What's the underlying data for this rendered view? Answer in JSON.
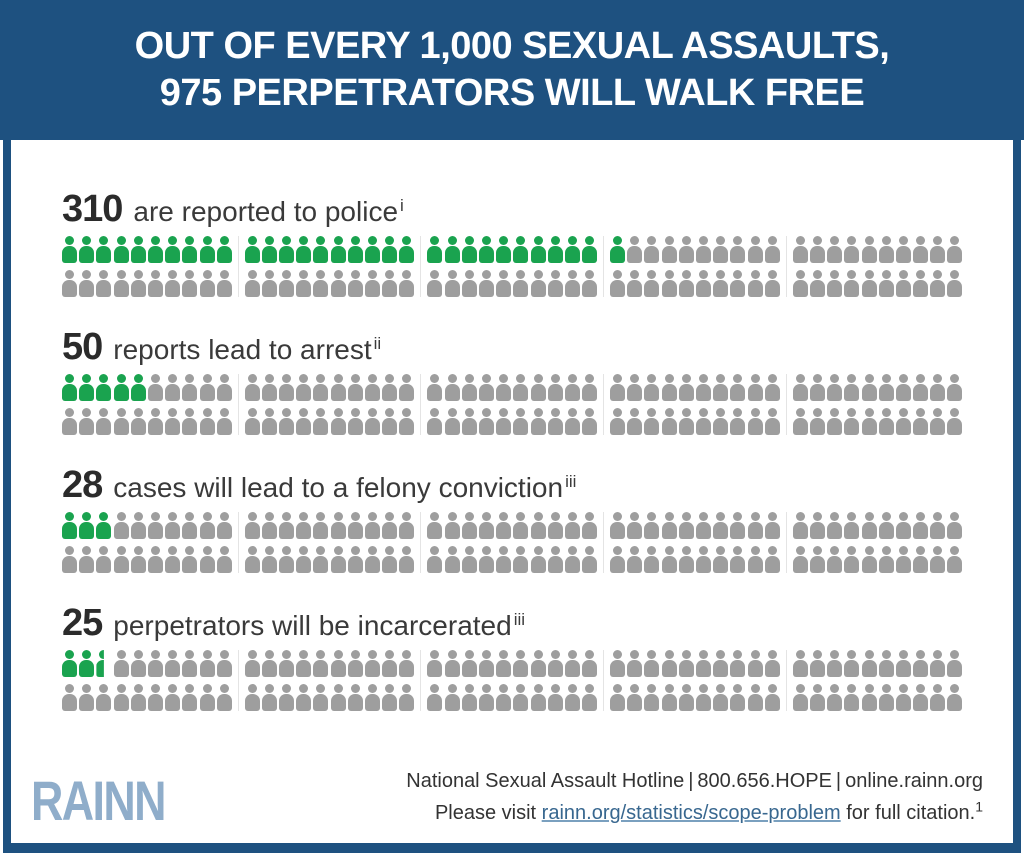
{
  "header": {
    "line1": "OUT OF EVERY 1,000 SEXUAL ASSAULTS,",
    "line2": "975 PERPETRATORS WILL WALK FREE"
  },
  "sections": [
    {
      "number": "310",
      "label": "are reported to police",
      "footnote": "i",
      "green_units": 31
    },
    {
      "number": "50",
      "label": "reports lead to arrest",
      "footnote": "ii",
      "green_units": 5
    },
    {
      "number": "28",
      "label": "cases will lead to a felony conviction",
      "footnote": "iii",
      "green_units": 3
    },
    {
      "number": "25",
      "label": "perpetrators will be incarcerated",
      "footnote": "iii",
      "green_units": 2.5
    }
  ],
  "pictogram": {
    "total_icons_per_section": 100,
    "icons_per_row": 50,
    "group_size": 10,
    "rows": 2,
    "unit_per_icon": 10
  },
  "footer": {
    "logo": "RAINN",
    "hotline_line": "National Sexual Assault Hotline | 800.656.HOPE | online.rainn.org",
    "citation_prefix": "Please visit ",
    "citation_link": "rainn.org/statistics/scope-problem",
    "citation_suffix": " for full citation.",
    "citation_superscript": "1"
  },
  "colors": {
    "header_bg": "#1e5180",
    "green": "#1aa34f",
    "gray": "#9e9e9e",
    "logo_blue": "#8fadca",
    "link_blue": "#38678f",
    "text_dark": "#333333"
  },
  "chart_data": {
    "type": "pictogram",
    "title": "OUT OF EVERY 1,000 SEXUAL ASSAULTS, 975 PERPETRATORS WILL WALK FREE",
    "categories": [
      "are reported to police",
      "reports lead to arrest",
      "cases will lead to a felony conviction",
      "perpetrators will be incarcerated"
    ],
    "values": [
      310,
      50,
      28,
      25
    ],
    "total": 1000,
    "walk_free": 975,
    "icon_unit": 10,
    "icons_per_section": 100,
    "green_icons": [
      31,
      5,
      3,
      2.5
    ],
    "footnotes": [
      "i",
      "ii",
      "iii",
      "iii"
    ],
    "legend_position": "none",
    "grid": false
  }
}
